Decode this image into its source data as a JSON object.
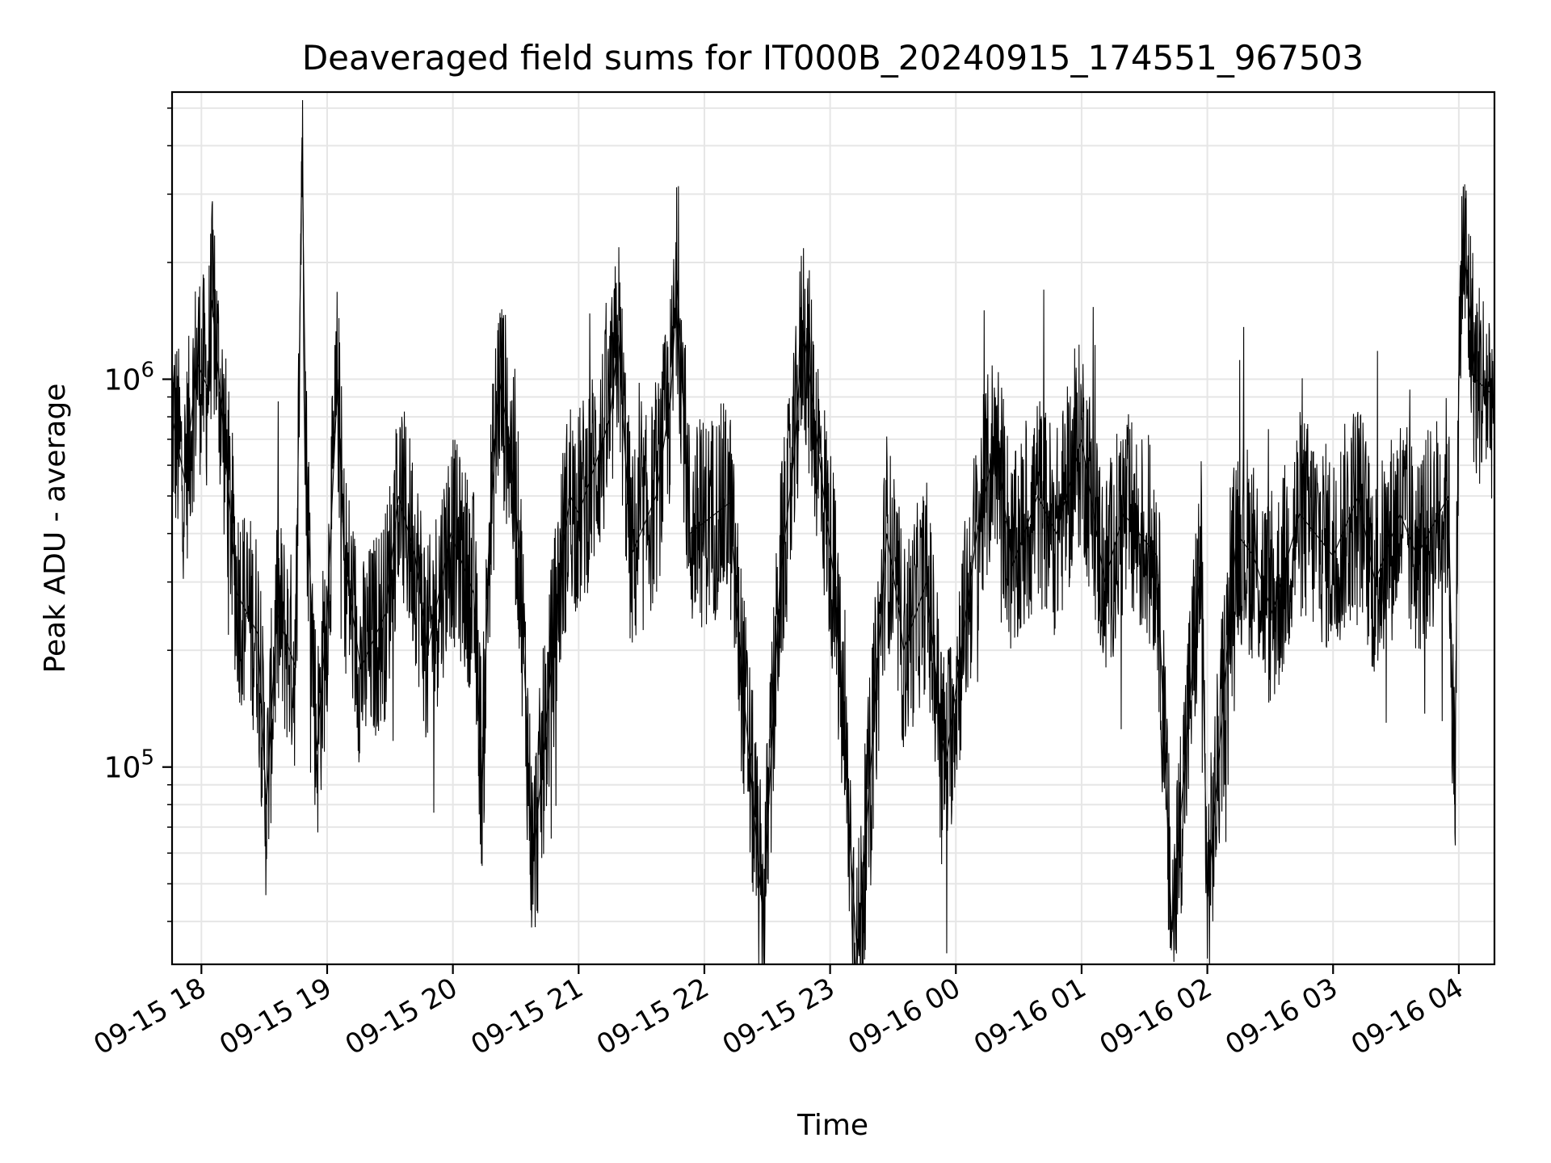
{
  "chart_data": {
    "type": "line",
    "title": "Deaveraged field sums for IT000B_20240915_174551_967503",
    "xlabel": "Time",
    "ylabel": "Peak ADU - average",
    "xlim": [
      "2024-09-15T17:46:00",
      "2024-09-16T04:17:00"
    ],
    "ylim": [
      31000,
      5500000
    ],
    "yscale": "log",
    "grid": true,
    "x_tick_labels": [
      "09-15 18",
      "09-15 19",
      "09-15 20",
      "09-15 21",
      "09-15 22",
      "09-15 23",
      "09-16 00",
      "09-16 01",
      "09-16 02",
      "09-16 03",
      "09-16 04"
    ],
    "x_tick_times": [
      "2024-09-15T18:00:00",
      "2024-09-15T19:00:00",
      "2024-09-15T20:00:00",
      "2024-09-15T21:00:00",
      "2024-09-15T22:00:00",
      "2024-09-15T23:00:00",
      "2024-09-16T00:00:00",
      "2024-09-16T01:00:00",
      "2024-09-16T02:00:00",
      "2024-09-16T03:00:00",
      "2024-09-16T04:00:00"
    ],
    "y_major_ticks": [
      {
        "value": 100000,
        "base": "10",
        "exp": "5"
      },
      {
        "value": 1000000,
        "base": "10",
        "exp": "6"
      }
    ],
    "line_color": "#000000",
    "series": [
      {
        "x": [
          "2024-09-15T17:46:00",
          "2024-09-15T17:52:00",
          "2024-09-15T17:58:00",
          "2024-09-15T18:03:00",
          "2024-09-15T18:05:00",
          "2024-09-15T18:10:00",
          "2024-09-15T18:17:00",
          "2024-09-15T18:27:00",
          "2024-09-15T18:31:00",
          "2024-09-15T18:36:00",
          "2024-09-15T18:45:00",
          "2024-09-15T18:48:00",
          "2024-09-15T18:50:00",
          "2024-09-15T18:55:00",
          "2024-09-15T19:00:00",
          "2024-09-15T19:05:00",
          "2024-09-15T19:08:00",
          "2024-09-15T19:16:00",
          "2024-09-15T19:28:00",
          "2024-09-15T19:34:00",
          "2024-09-15T19:42:00",
          "2024-09-15T19:48:00",
          "2024-09-15T19:59:00",
          "2024-09-15T20:10:00",
          "2024-09-15T20:14:00",
          "2024-09-15T20:17:00",
          "2024-09-15T20:22:00",
          "2024-09-15T20:27:00",
          "2024-09-15T20:32:00",
          "2024-09-15T20:38:00",
          "2024-09-15T20:52:00",
          "2024-09-15T20:56:00",
          "2024-09-15T21:00:00",
          "2024-09-15T21:10:00",
          "2024-09-15T21:15:00",
          "2024-09-15T21:19:00",
          "2024-09-15T21:25:00",
          "2024-09-15T21:37:00",
          "2024-09-15T21:44:00",
          "2024-09-15T21:47:00",
          "2024-09-15T21:53:00",
          "2024-09-15T22:12:00",
          "2024-09-15T22:17:00",
          "2024-09-15T22:28:00",
          "2024-09-15T22:36:00",
          "2024-09-15T22:43:00",
          "2024-09-15T22:47:00",
          "2024-09-15T23:02:00",
          "2024-09-15T23:13:00",
          "2024-09-15T23:27:00",
          "2024-09-15T23:33:00",
          "2024-09-15T23:35:00",
          "2024-09-15T23:46:00",
          "2024-09-15T23:55:00",
          "2024-09-16T00:10:00",
          "2024-09-16T00:19:00",
          "2024-09-16T00:27:00",
          "2024-09-16T00:39:00",
          "2024-09-16T00:48:00",
          "2024-09-16T01:00:00",
          "2024-09-16T01:11:00",
          "2024-09-16T01:20:00",
          "2024-09-16T01:36:00",
          "2024-09-16T01:43:00",
          "2024-09-16T01:57:00",
          "2024-09-16T02:00:00",
          "2024-09-16T02:14:00",
          "2024-09-16T02:22:00",
          "2024-09-16T02:31:00",
          "2024-09-16T02:44:00",
          "2024-09-16T03:00:00",
          "2024-09-16T03:12:00",
          "2024-09-16T03:20:00",
          "2024-09-16T03:32:00",
          "2024-09-16T03:40:00",
          "2024-09-16T03:55:00",
          "2024-09-16T03:58:00",
          "2024-09-16T04:00:00",
          "2024-09-16T04:02:00",
          "2024-09-16T04:08:00",
          "2024-09-16T04:17:00"
        ],
        "y": [
          800000,
          550000,
          1100000,
          950000,
          1600000,
          800000,
          280000,
          220000,
          80000,
          250000,
          180000,
          4200000,
          600000,
          110000,
          250000,
          1000000,
          350000,
          180000,
          250000,
          500000,
          350000,
          200000,
          400000,
          280000,
          90000,
          350000,
          1000000,
          700000,
          350000,
          55000,
          350000,
          500000,
          450000,
          650000,
          800000,
          1300000,
          350000,
          500000,
          900000,
          1800000,
          400000,
          480000,
          200000,
          41000,
          300000,
          650000,
          1400000,
          300000,
          32000,
          400000,
          250000,
          200000,
          300000,
          100000,
          400000,
          700000,
          330000,
          500000,
          400000,
          700000,
          300000,
          450000,
          350000,
          38000,
          350000,
          45000,
          400000,
          350000,
          250000,
          450000,
          350000,
          500000,
          300000,
          450000,
          350000,
          500000,
          80000,
          1000000,
          2300000,
          1000000,
          900000
        ]
      }
    ]
  }
}
